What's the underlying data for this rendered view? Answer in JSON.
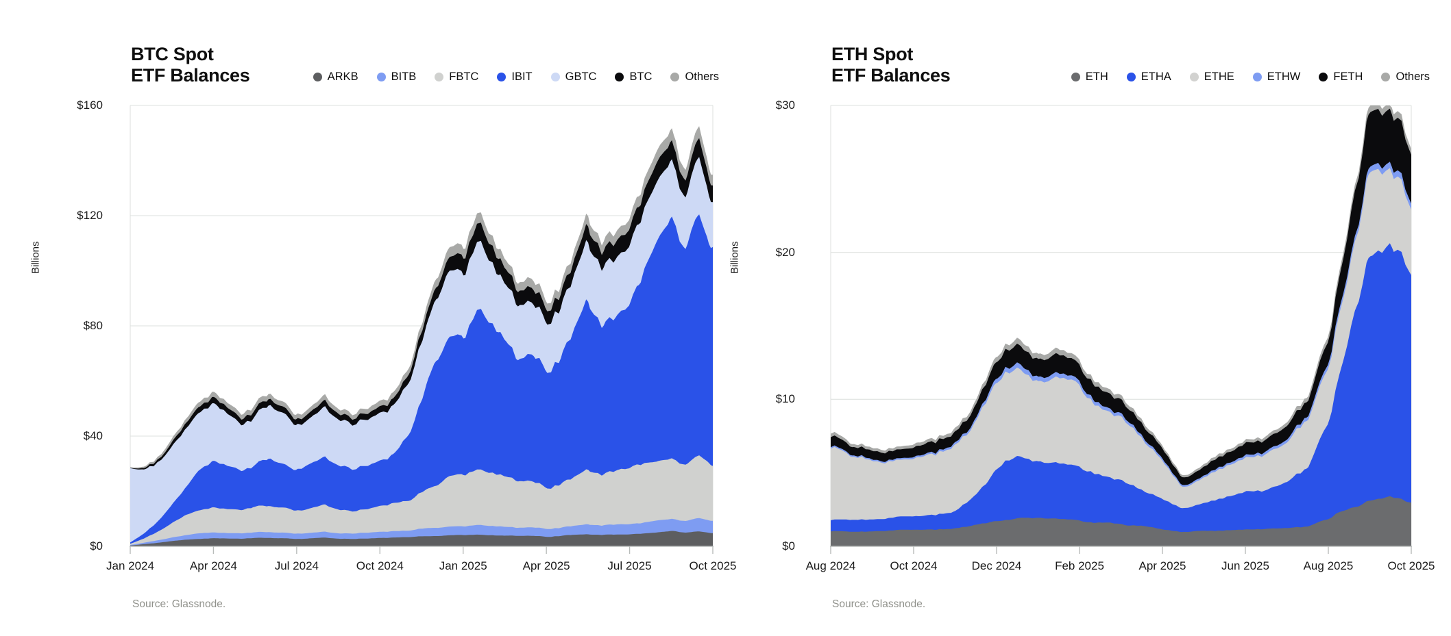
{
  "page_background": "#ffffff",
  "chart_data": [
    {
      "type": "area",
      "stacked": true,
      "title": "BTC Spot ETF Balances",
      "title_lines": [
        "BTC Spot",
        "ETF Balances"
      ],
      "ylabel": "Billions",
      "xlabel": "",
      "ylim": [
        0,
        160
      ],
      "grid": true,
      "legend_position": "top",
      "source": "Source: Glassnode.",
      "sample_interval": "semi-monthly",
      "x_range": [
        "Jan 2024",
        "Oct 2025"
      ],
      "y_ticks": [
        {
          "label": "$0",
          "value": 0
        },
        {
          "label": "$40",
          "value": 40
        },
        {
          "label": "$80",
          "value": 80
        },
        {
          "label": "$120",
          "value": 120
        },
        {
          "label": "$160",
          "value": 160
        }
      ],
      "x_ticks": [
        "Jan 2024",
        "Apr 2024",
        "Jul 2024",
        "Oct 2024",
        "Jan 2025",
        "Apr 2025",
        "Jul 2025",
        "Oct 2025"
      ],
      "series": [
        {
          "name": "ARKB",
          "color": "#5d5e60",
          "values": [
            0.3,
            0.8,
            1.3,
            1.9,
            2.4,
            2.8,
            3.0,
            2.9,
            2.7,
            2.9,
            3.1,
            3.0,
            2.7,
            2.9,
            3.1,
            2.9,
            2.7,
            2.8,
            3.0,
            3.1,
            3.2,
            3.6,
            3.9,
            4.2,
            4.1,
            4.4,
            4.2,
            4.0,
            3.7,
            3.8,
            3.5,
            3.6,
            4.0,
            4.4,
            4.2,
            4.4,
            4.5,
            4.9,
            5.2,
            5.3,
            4.9,
            5.4,
            5.0
          ]
        },
        {
          "name": "BITB",
          "color": "#7e9cf2",
          "values": [
            0.2,
            0.5,
            0.9,
            1.3,
            1.7,
            2.0,
            2.1,
            2.0,
            1.9,
            2.0,
            2.2,
            2.1,
            1.9,
            2.0,
            2.2,
            2.0,
            1.9,
            2.0,
            2.1,
            2.2,
            2.3,
            2.7,
            3.0,
            3.3,
            3.2,
            3.5,
            3.3,
            3.2,
            2.9,
            3.0,
            2.8,
            2.9,
            3.2,
            3.6,
            3.4,
            3.6,
            3.7,
            4.1,
            4.4,
            4.5,
            4.2,
            4.6,
            4.3
          ]
        },
        {
          "name": "FBTC",
          "color": "#d0d1cf",
          "values": [
            0.4,
            1.6,
            3.2,
            5.2,
            7.2,
            8.6,
            9.2,
            8.8,
            8.2,
            8.8,
            9.5,
            9.1,
            8.3,
            8.9,
            9.6,
            8.9,
            8.3,
            8.7,
            9.3,
            9.9,
            10.6,
            12.8,
            15.0,
            18.5,
            19.0,
            20.5,
            19.5,
            18.5,
            16.5,
            17.0,
            15.5,
            16.0,
            17.5,
            19.5,
            18.7,
            19.3,
            19.7,
            21.2,
            22.0,
            22.2,
            20.4,
            21.8,
            19.8
          ]
        },
        {
          "name": "IBIT",
          "color": "#2a52e8",
          "values": [
            0.5,
            1.8,
            3.6,
            6.4,
            10.0,
            15.0,
            16.5,
            15.5,
            14.0,
            15.2,
            16.8,
            16.0,
            14.5,
            15.8,
            17.5,
            16.0,
            15.0,
            15.8,
            16.8,
            18.4,
            24.0,
            33.0,
            46.0,
            52.0,
            49.0,
            56.0,
            53.0,
            50.0,
            44.0,
            46.0,
            42.0,
            44.0,
            51.0,
            58.0,
            56.0,
            58.5,
            62.0,
            72.0,
            78.0,
            84.0,
            76.0,
            86.0,
            83.0
          ]
        },
        {
          "name": "GBTC",
          "color": "#cdd9f5",
          "values": [
            25.8,
            23.6,
            22.0,
            21.4,
            21.2,
            21.0,
            20.2,
            18.8,
            16.6,
            17.8,
            19.0,
            18.2,
            16.2,
            17.2,
            18.6,
            16.9,
            15.8,
            16.4,
            17.2,
            17.7,
            18.4,
            21.0,
            22.5,
            23.5,
            22.5,
            24.0,
            22.5,
            21.0,
            19.0,
            19.5,
            17.8,
            18.2,
            20.0,
            22.0,
            21.0,
            21.0,
            20.8,
            21.6,
            21.4,
            21.0,
            18.6,
            19.8,
            15.8
          ]
        },
        {
          "name": "BTC",
          "color": "#0b0b0d",
          "values": [
            0.1,
            0.5,
            1.0,
            1.5,
            1.9,
            2.2,
            2.3,
            2.2,
            2.0,
            2.2,
            2.4,
            2.3,
            2.1,
            2.2,
            2.4,
            2.2,
            2.1,
            2.2,
            2.4,
            2.6,
            2.9,
            3.6,
            4.2,
            4.8,
            5.9,
            6.5,
            6.0,
            5.6,
            5.0,
            5.1,
            4.7,
            4.8,
            5.3,
            5.9,
            5.7,
            5.9,
            6.0,
            6.5,
            7.0,
            7.0,
            6.3,
            6.8,
            6.0
          ]
        },
        {
          "name": "Others",
          "color": "#a8a9a7",
          "values": [
            0.2,
            0.5,
            0.9,
            1.3,
            1.6,
            1.8,
            1.9,
            1.8,
            1.7,
            1.8,
            2.0,
            1.9,
            1.7,
            1.8,
            2.0,
            1.8,
            1.7,
            1.8,
            1.9,
            2.1,
            2.3,
            2.8,
            3.2,
            3.6,
            3.5,
            3.8,
            3.6,
            3.4,
            3.1,
            3.2,
            2.9,
            3.0,
            3.4,
            3.8,
            3.6,
            3.7,
            3.8,
            4.1,
            4.3,
            4.4,
            4.0,
            4.4,
            4.1
          ]
        }
      ]
    },
    {
      "type": "area",
      "stacked": true,
      "title": "ETH Spot ETF Balances",
      "title_lines": [
        "ETH Spot",
        "ETF Balances"
      ],
      "ylabel": "Billions",
      "xlabel": "",
      "ylim": [
        0,
        30
      ],
      "grid": true,
      "legend_position": "top",
      "source": "Source: Glassnode.",
      "sample_interval": "semi-monthly",
      "x_range": [
        "Aug 2024",
        "Oct 2025"
      ],
      "y_ticks": [
        {
          "label": "$0",
          "value": 0
        },
        {
          "label": "$10",
          "value": 10
        },
        {
          "label": "$20",
          "value": 20
        },
        {
          "label": "$30",
          "value": 30
        }
      ],
      "x_ticks": [
        "Aug 2024",
        "Oct 2024",
        "Dec 2024",
        "Feb 2025",
        "Apr 2025",
        "Jun 2025",
        "Aug 2025",
        "Oct 2025"
      ],
      "series": [
        {
          "name": "ETH",
          "color": "#6b6c6e",
          "values": [
            1.0,
            1.0,
            1.05,
            1.05,
            1.1,
            1.15,
            1.2,
            1.5,
            1.8,
            1.9,
            1.85,
            1.85,
            1.7,
            1.6,
            1.5,
            1.35,
            1.2,
            1.0,
            1.05,
            1.1,
            1.15,
            1.2,
            1.25,
            1.4,
            1.8,
            2.6,
            3.2,
            3.3,
            3.1
          ]
        },
        {
          "name": "ETHA",
          "color": "#2a52e8",
          "values": [
            0.8,
            0.85,
            0.85,
            0.9,
            0.95,
            1.05,
            1.1,
            2.0,
            3.5,
            4.2,
            3.9,
            4.0,
            3.7,
            3.3,
            3.0,
            2.5,
            2.1,
            1.7,
            1.9,
            2.2,
            2.5,
            2.7,
            3.1,
            4.0,
            6.5,
            11.5,
            16.5,
            16.8,
            15.8
          ]
        },
        {
          "name": "ETHE",
          "color": "#d2d2d0",
          "values": [
            5.2,
            4.3,
            4.0,
            3.9,
            3.8,
            4.1,
            4.3,
            5.0,
            5.8,
            6.2,
            5.7,
            5.9,
            5.3,
            4.6,
            4.3,
            3.6,
            2.6,
            1.5,
            1.7,
            2.0,
            2.3,
            2.5,
            2.8,
            3.2,
            3.8,
            4.6,
            5.5,
            5.2,
            4.4
          ]
        },
        {
          "name": "ETHW",
          "color": "#7e9cf2",
          "values": [
            0.1,
            0.1,
            0.1,
            0.1,
            0.12,
            0.12,
            0.15,
            0.2,
            0.3,
            0.35,
            0.3,
            0.3,
            0.28,
            0.25,
            0.22,
            0.18,
            0.15,
            0.12,
            0.13,
            0.15,
            0.17,
            0.18,
            0.2,
            0.25,
            0.3,
            0.35,
            0.4,
            0.42,
            0.4
          ]
        },
        {
          "name": "FETH",
          "color": "#0b0b0d",
          "values": [
            0.7,
            0.6,
            0.6,
            0.6,
            0.65,
            0.7,
            0.75,
            0.9,
            1.1,
            1.3,
            1.2,
            1.25,
            1.1,
            1.0,
            0.95,
            0.8,
            0.65,
            0.55,
            0.6,
            0.7,
            0.8,
            0.85,
            0.95,
            1.1,
            1.6,
            2.8,
            3.8,
            3.7,
            3.3
          ]
        },
        {
          "name": "Others",
          "color": "#a8a9a7",
          "values": [
            0.25,
            0.2,
            0.2,
            0.2,
            0.22,
            0.22,
            0.25,
            0.3,
            0.35,
            0.4,
            0.35,
            0.37,
            0.33,
            0.3,
            0.28,
            0.24,
            0.2,
            0.15,
            0.17,
            0.2,
            0.22,
            0.23,
            0.25,
            0.3,
            0.35,
            0.4,
            0.45,
            0.45,
            0.4
          ]
        }
      ]
    }
  ],
  "style_colors": {
    "gridline": "#e4e7e5",
    "axis_line": "#b8bcba",
    "plot_border": "#dcdfdd"
  }
}
